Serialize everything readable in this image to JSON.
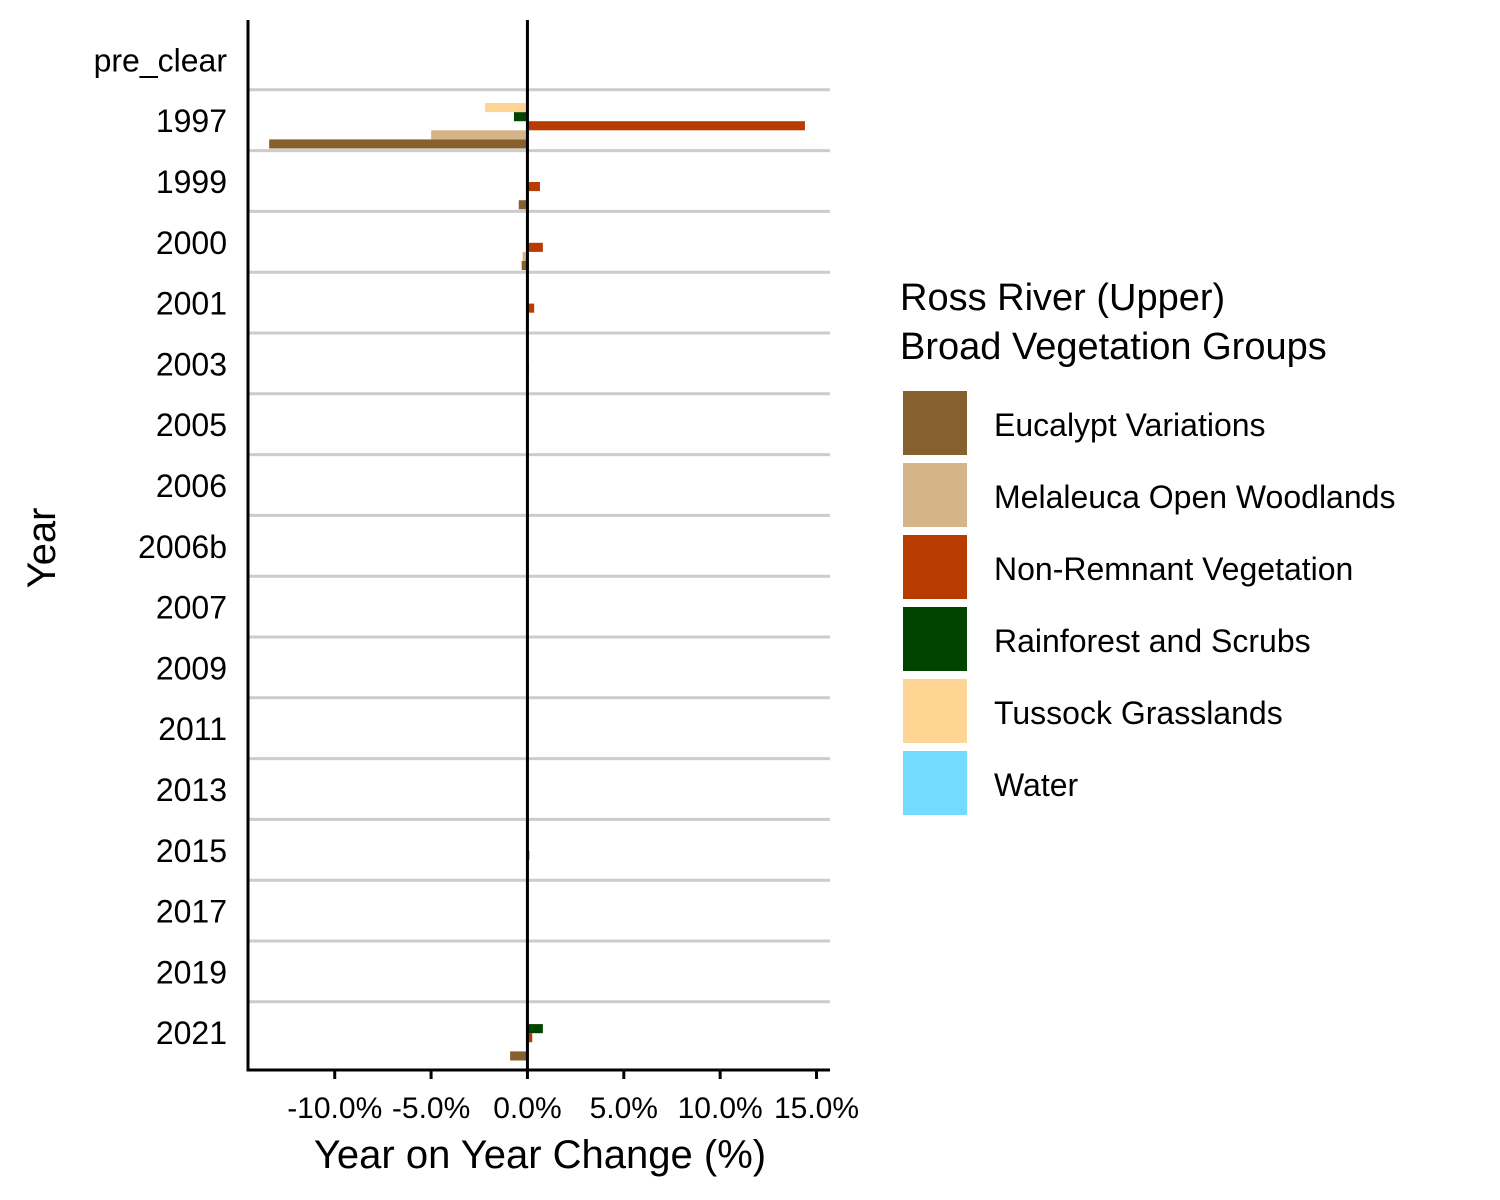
{
  "chart_data": {
    "type": "bar",
    "orientation": "horizontal",
    "title": "",
    "xlabel": "Year on Year Change (%)",
    "ylabel": "Year",
    "xlim": [
      -14.5,
      15.7
    ],
    "x_ticks": [
      -10,
      -5,
      0,
      5,
      10,
      15
    ],
    "x_tick_labels": [
      "-10.0%",
      "-5.0%",
      "0.0%",
      "5.0%",
      "10.0%",
      "15.0%"
    ],
    "categories": [
      "pre_clear",
      "1997",
      "1999",
      "2000",
      "2001",
      "2003",
      "2005",
      "2006",
      "2006b",
      "2007",
      "2009",
      "2011",
      "2013",
      "2015",
      "2017",
      "2019",
      "2021"
    ],
    "legend": {
      "title_lines": [
        "Ross River (Upper)",
        "Broad Vegetation Groups"
      ],
      "position": "right"
    },
    "grid": "horizontal separators between categories",
    "series": [
      {
        "name": "Eucalypt Variations",
        "color": "#86602F",
        "values": [
          0,
          -13.4,
          -0.45,
          -0.3,
          -0.08,
          0,
          0,
          0,
          0,
          0,
          0,
          0,
          0,
          0,
          0,
          0,
          -0.9
        ]
      },
      {
        "name": "Melaleuca Open Woodlands",
        "color": "#D5B48A",
        "values": [
          0,
          -5.0,
          0,
          -0.25,
          0,
          0,
          0,
          0,
          0,
          0,
          0,
          0,
          0,
          0,
          0,
          0,
          0
        ]
      },
      {
        "name": "Non-Remnant Vegetation",
        "color": "#B83C00",
        "values": [
          0,
          14.4,
          0.65,
          0.8,
          0.35,
          0.08,
          0,
          0,
          0,
          0,
          0,
          0,
          0,
          0.1,
          0,
          0,
          0.25
        ]
      },
      {
        "name": "Rainforest and Scrubs",
        "color": "#004400",
        "values": [
          0,
          -0.7,
          0,
          0,
          0,
          0,
          0,
          0,
          0,
          0,
          0,
          0,
          0,
          0,
          0,
          0,
          0.8
        ]
      },
      {
        "name": "Tussock Grasslands",
        "color": "#FED592",
        "values": [
          0,
          -2.2,
          0,
          0,
          0,
          0,
          0,
          0,
          0,
          0,
          0,
          0,
          0,
          0,
          0,
          0,
          0
        ]
      },
      {
        "name": "Water",
        "color": "#72DBFF",
        "values": [
          0,
          0,
          0,
          0,
          0,
          0,
          0,
          0,
          0,
          0,
          0,
          0,
          0,
          0,
          0,
          0,
          0
        ]
      }
    ]
  }
}
